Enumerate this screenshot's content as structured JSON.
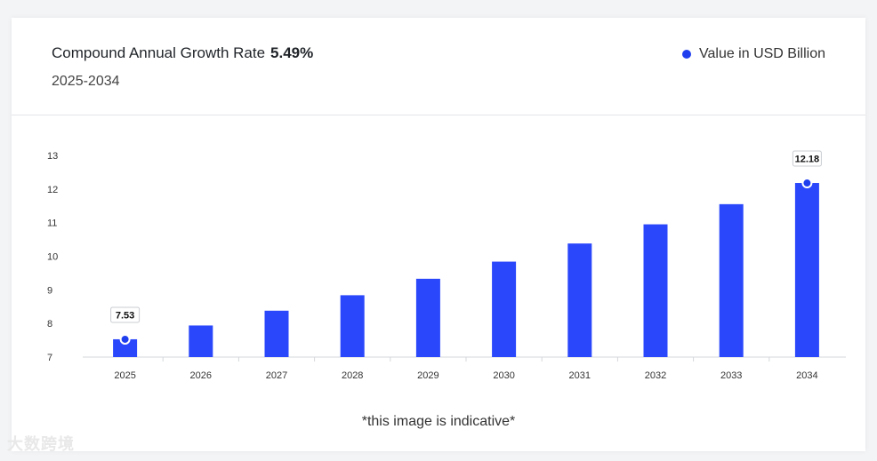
{
  "header": {
    "cagr_label": "Compound Annual Growth Rate",
    "cagr_value": "5.49%",
    "period": "2025-2034",
    "legend_label": "Value in USD Billion"
  },
  "note": "*this image is indicative*",
  "watermark": "大数跨境",
  "colors": {
    "bar": "#2a47fb",
    "accent": "#1f3fef"
  },
  "chart_data": {
    "type": "bar",
    "title": "",
    "xlabel": "",
    "ylabel": "",
    "categories": [
      "2025",
      "2026",
      "2027",
      "2028",
      "2029",
      "2030",
      "2031",
      "2032",
      "2033",
      "2034"
    ],
    "series": [
      {
        "name": "Value in USD Billion",
        "values": [
          7.53,
          7.94,
          8.38,
          8.84,
          9.33,
          9.84,
          10.38,
          10.95,
          11.55,
          12.18
        ]
      }
    ],
    "ylim": [
      7,
      13
    ],
    "yticks": [
      7,
      8,
      9,
      10,
      11,
      12,
      13
    ],
    "data_labels": [
      {
        "index": 0,
        "text": "7.53"
      },
      {
        "index": 9,
        "text": "12.18"
      }
    ],
    "legend_position": "top-right",
    "grid": false
  }
}
